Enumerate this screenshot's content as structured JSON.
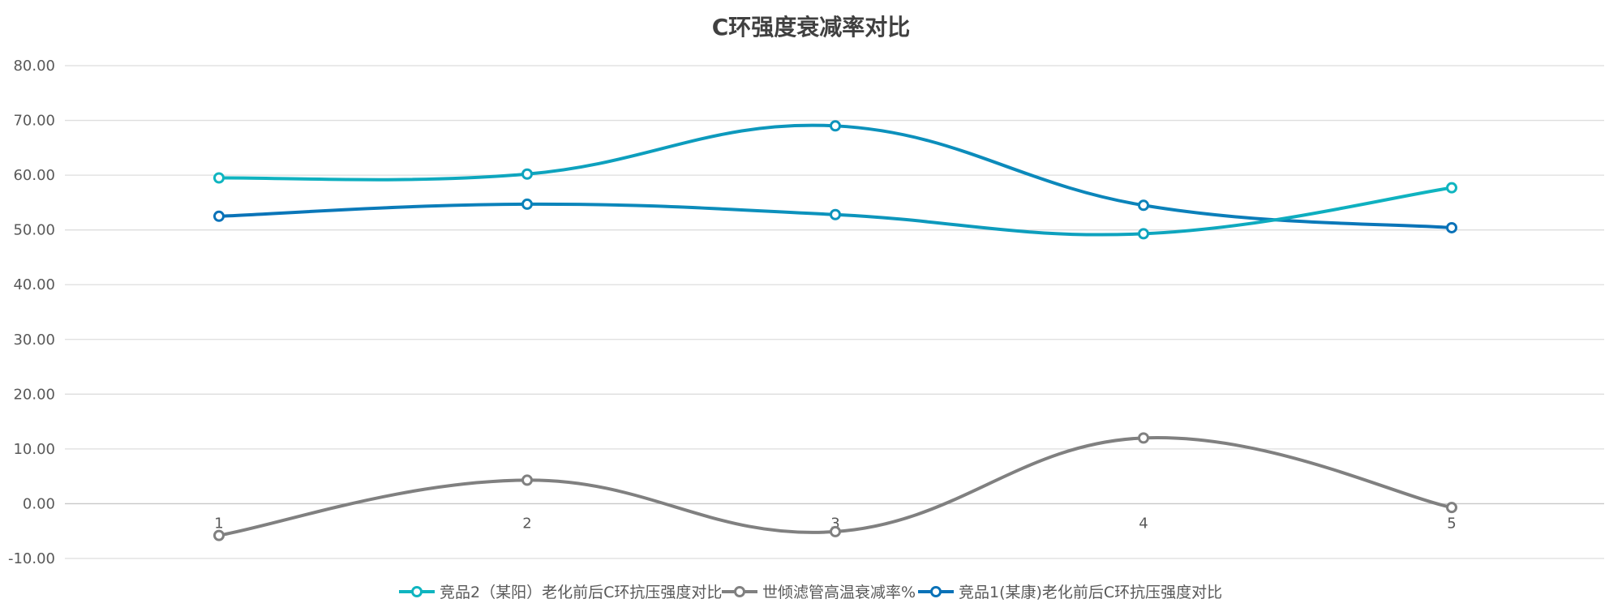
{
  "chart_data": {
    "type": "line",
    "title": "C环强度衰减率对比",
    "categories": [
      "1",
      "2",
      "3",
      "4",
      "5"
    ],
    "ylim": [
      -10,
      80
    ],
    "yticks": [
      "80.00",
      "70.00",
      "60.00",
      "50.00",
      "40.00",
      "30.00",
      "20.00",
      "10.00",
      "0.00",
      "-10.00"
    ],
    "ytick_values": [
      80,
      70,
      60,
      50,
      40,
      30,
      20,
      10,
      0,
      -10
    ],
    "grid": true,
    "legend_position": "bottom",
    "smooth": true,
    "series": [
      {
        "name": "竞品2（某阳）老化前后C环抗压强度对比",
        "values": [
          59.5,
          60.2,
          69.0,
          54.5,
          50.4
        ],
        "color": "#0fb5c0",
        "color_end": "#0a72b8"
      },
      {
        "name": "世倾滤管高温衰减率%",
        "values": [
          -5.8,
          4.3,
          -5.1,
          12.0,
          -0.7
        ],
        "color": "#808080",
        "color_end": "#808080"
      },
      {
        "name": "竞品1(某康)老化前后C环抗压强度对比",
        "values": [
          52.5,
          54.7,
          52.8,
          49.3,
          57.7
        ],
        "color": "#0a72b8",
        "color_end": "#0fb5c0"
      }
    ]
  }
}
